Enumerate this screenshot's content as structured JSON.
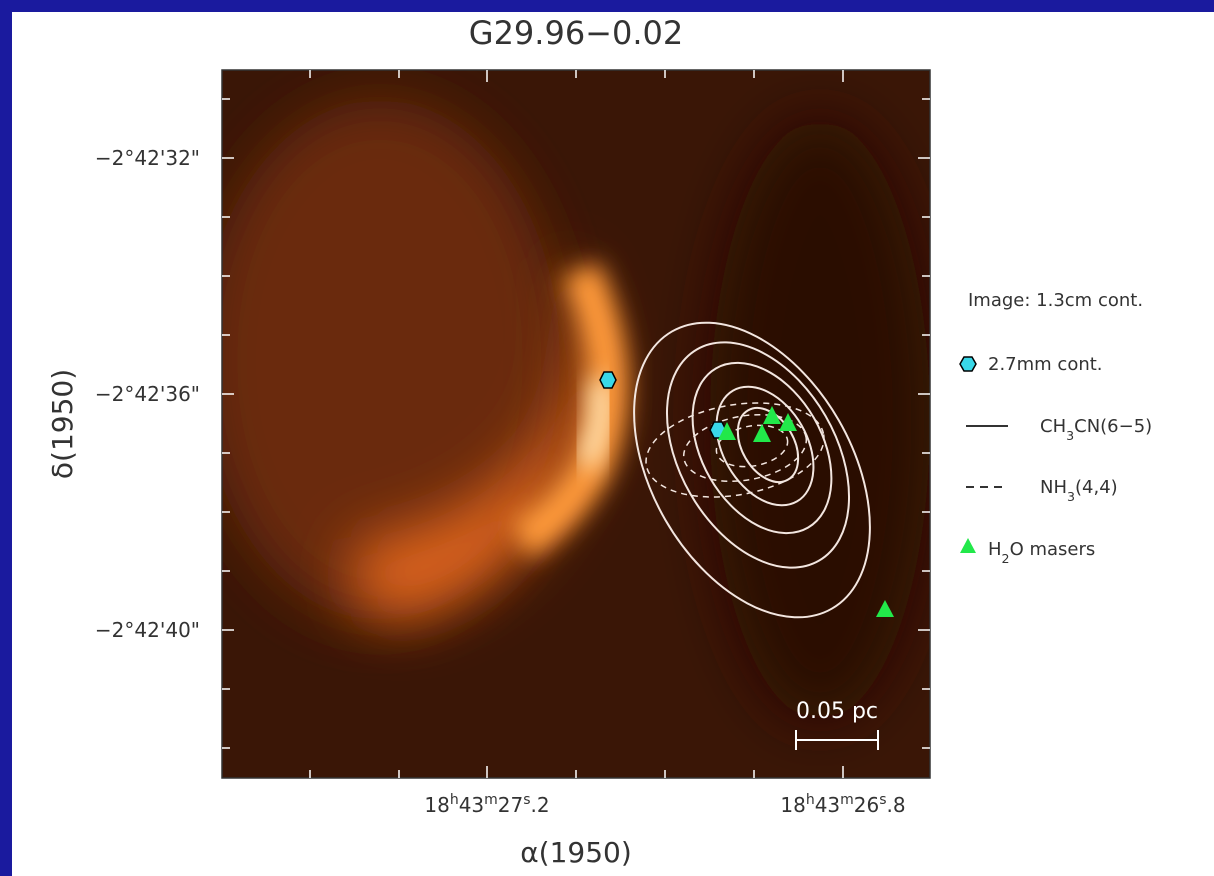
{
  "title": "G29.96−0.02",
  "x_axis": {
    "label": [
      "α",
      "(1950)"
    ],
    "ticks": [
      [
        "18",
        "h",
        "43",
        "m",
        "27",
        "s",
        ".2"
      ],
      [
        "18",
        "h",
        "43",
        "m",
        "26",
        "s",
        ".8"
      ]
    ]
  },
  "y_axis": {
    "label": [
      "δ",
      "(1950)"
    ],
    "ticks": [
      "−2°42'32\"",
      "−2°42'36\"",
      "−2°42'40\""
    ]
  },
  "legend": {
    "image": "Image: 1.3cm cont.",
    "items": [
      [
        "2.7mm cont."
      ],
      [
        "CH",
        "3",
        "CN(6−5)"
      ],
      [
        "NH",
        "3",
        "(4,4)"
      ],
      [
        "H",
        "2",
        "O masers"
      ]
    ]
  },
  "scale_bar": "0.05 pc"
}
